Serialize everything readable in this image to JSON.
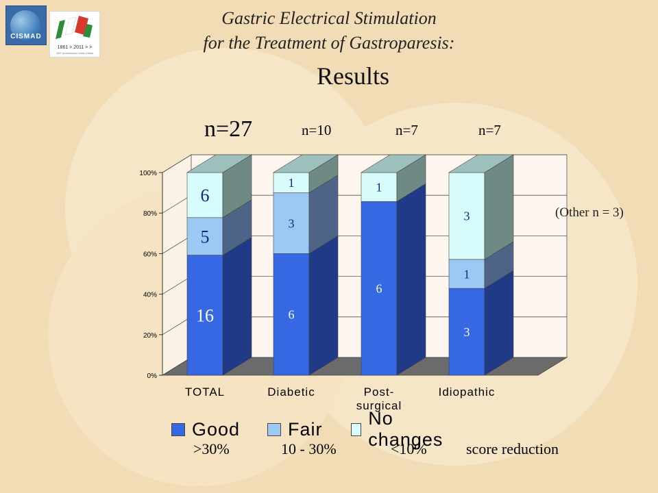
{
  "header": {
    "title_line1": "Gastric Electrical Stimulation",
    "title_line2": "for the Treatment of Gastroparesis:",
    "title_line3": "Results"
  },
  "logos": {
    "left_text": "CISMAD",
    "right_caption": "1861 > 2011 > >",
    "right_sub": "150° anniversario Unità d'Italia"
  },
  "n_labels": [
    "n=27",
    "n=10",
    "n=7",
    "n=7"
  ],
  "other_note": "(Other n = 3)",
  "legend": {
    "items": [
      "Good",
      "Fair",
      "No changes"
    ],
    "sublabels": [
      ">30%",
      "10 - 30%",
      "<10%",
      "score reduction"
    ]
  },
  "colors": {
    "good": "#3668e4",
    "fair": "#9cc8f4",
    "no_changes": "#d8fbfb"
  },
  "chart_data": {
    "type": "bar",
    "stacked": true,
    "percent": true,
    "categories": [
      "TOTAL",
      "Diabetic",
      "Post-\nsurgical",
      "Idiopathic"
    ],
    "series": [
      {
        "name": "Good",
        "values": [
          16,
          6,
          6,
          3
        ]
      },
      {
        "name": "Fair",
        "values": [
          5,
          3,
          0,
          1
        ]
      },
      {
        "name": "No changes",
        "values": [
          6,
          1,
          1,
          3
        ]
      }
    ],
    "segment_labels": [
      [
        "16",
        "5",
        "6"
      ],
      [
        "6",
        "3",
        "1"
      ],
      [
        "6",
        "",
        "1"
      ],
      [
        "3",
        "1",
        "3"
      ]
    ],
    "yticks": [
      "0%",
      "20%",
      "40%",
      "60%",
      "80%",
      "100%"
    ],
    "ylim": [
      0,
      100
    ],
    "grid": true,
    "legend_position": "bottom"
  }
}
